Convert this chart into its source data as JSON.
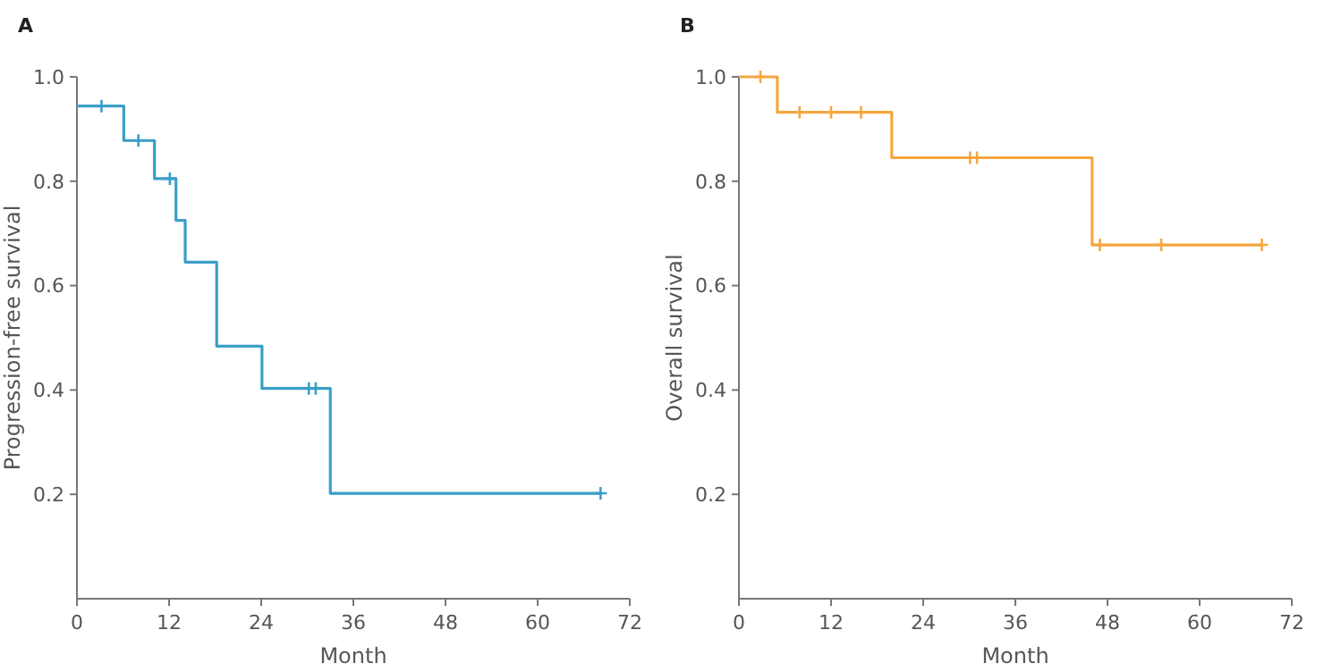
{
  "chart_data": [
    {
      "type": "step",
      "title": "A",
      "xlabel": "Month",
      "ylabel": "Progression-free survival",
      "xlim": [
        0,
        72
      ],
      "xticks": [
        0,
        12,
        24,
        36,
        48,
        60,
        72
      ],
      "ylim": [
        0,
        1.0
      ],
      "yticks": [
        {
          "value": 0.2,
          "label": "0.2"
        },
        {
          "value": 0.4,
          "label": "0.4"
        },
        {
          "value": 0.6,
          "label": "0.6"
        },
        {
          "value": 0.8,
          "label": "0.8"
        },
        {
          "value": 1.0,
          "label": "1.0"
        }
      ],
      "grid": false,
      "series": [
        {
          "color": "#3a9fc8",
          "x": [
            0,
            6.1,
            10.1,
            12.9,
            14.1,
            18.2,
            24.1,
            33.0,
            68.2
          ],
          "values": [
            0.944,
            0.878,
            0.805,
            0.725,
            0.645,
            0.484,
            0.403,
            0.202,
            0.202
          ]
        },
        {
          "type": "scatter",
          "marker": "cross",
          "color": "#3a9fc8",
          "x": [
            3.2,
            8.0,
            12.1,
            30.2,
            31.1,
            68.2
          ],
          "values": [
            0.944,
            0.878,
            0.805,
            0.403,
            0.403,
            0.202
          ]
        }
      ]
    },
    {
      "type": "step",
      "title": "B",
      "xlabel": "Month",
      "ylabel": "Overall survival",
      "xlim": [
        0,
        72
      ],
      "xticks": [
        0,
        12,
        24,
        36,
        48,
        60,
        72
      ],
      "ylim": [
        0,
        1.0
      ],
      "yticks": [
        {
          "value": 0.2,
          "label": "0.2"
        },
        {
          "value": 0.4,
          "label": "0.4"
        },
        {
          "value": 0.6,
          "label": "0.6"
        },
        {
          "value": 0.8,
          "label": "0.8"
        },
        {
          "value": 1.0,
          "label": "1.0"
        }
      ],
      "grid": false,
      "series": [
        {
          "color": "#f5a742",
          "x": [
            0,
            5.0,
            19.9,
            46.0,
            68.1
          ],
          "values": [
            1.0,
            0.932,
            0.845,
            0.678,
            0.678
          ]
        },
        {
          "type": "scatter",
          "marker": "cross",
          "color": "#f5a742",
          "x": [
            2.8,
            7.9,
            12.0,
            15.9,
            30.1,
            31.0,
            47.0,
            55.0,
            68.1
          ],
          "values": [
            1.0,
            0.932,
            0.932,
            0.932,
            0.845,
            0.845,
            0.678,
            0.678,
            0.678
          ]
        }
      ]
    }
  ]
}
